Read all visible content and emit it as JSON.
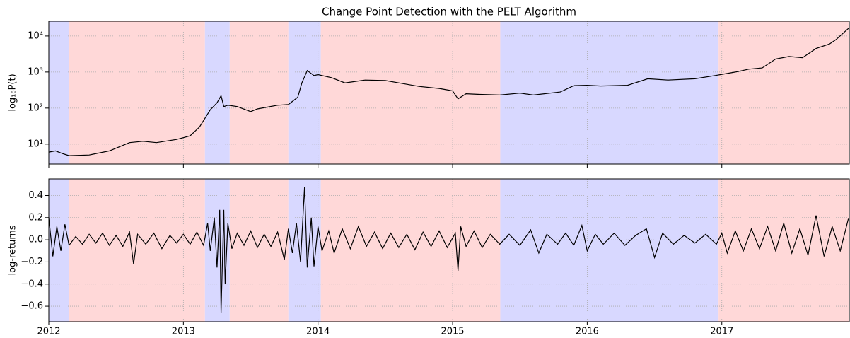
{
  "chart_data": [
    {
      "type": "line",
      "title": "Change Point Detection with the PELT Algorithm",
      "ylabel": "log₁₀P(t)",
      "log_y": true,
      "grid": true,
      "color": "#000000",
      "xlim": [
        2012.0,
        2017.947
      ],
      "xticks": [
        2012,
        2013,
        2014,
        2015,
        2016,
        2017
      ],
      "ylim": [
        2.8,
        25700
      ],
      "yticks": [
        {
          "value": 10,
          "label": "10¹"
        },
        {
          "value": 100,
          "label": "10²"
        },
        {
          "value": 1000,
          "label": "10³"
        },
        {
          "value": 10000,
          "label": "10⁴"
        }
      ],
      "spans": [
        {
          "start": 2012.0,
          "end": 2012.152,
          "color": "#d8d8ff"
        },
        {
          "start": 2012.152,
          "end": 2013.16,
          "color": "#ffd8d8"
        },
        {
          "start": 2013.16,
          "end": 2013.344,
          "color": "#d8d8ff"
        },
        {
          "start": 2013.344,
          "end": 2013.78,
          "color": "#ffd8d8"
        },
        {
          "start": 2013.78,
          "end": 2014.021,
          "color": "#d8d8ff"
        },
        {
          "start": 2014.021,
          "end": 2015.354,
          "color": "#ffd8d8"
        },
        {
          "start": 2015.354,
          "end": 2016.976,
          "color": "#d8d8ff"
        },
        {
          "start": 2016.976,
          "end": 2017.947,
          "color": "#ffd8d8"
        }
      ],
      "x": [
        2012.0,
        2012.05,
        2012.1,
        2012.15,
        2012.3,
        2012.45,
        2012.6,
        2012.7,
        2012.8,
        2012.95,
        2013.05,
        2013.12,
        2013.2,
        2013.25,
        2013.28,
        2013.3,
        2013.33,
        2013.4,
        2013.5,
        2013.55,
        2013.7,
        2013.78,
        2013.85,
        2013.88,
        2013.92,
        2013.97,
        2014.0,
        2014.1,
        2014.2,
        2014.35,
        2014.5,
        2014.6,
        2014.75,
        2014.9,
        2015.0,
        2015.04,
        2015.1,
        2015.2,
        2015.35,
        2015.5,
        2015.6,
        2015.8,
        2015.9,
        2016.0,
        2016.1,
        2016.3,
        2016.45,
        2016.6,
        2016.8,
        2016.95,
        2017.1,
        2017.2,
        2017.3,
        2017.4,
        2017.5,
        2017.6,
        2017.7,
        2017.8,
        2017.85,
        2017.947
      ],
      "values": [
        6,
        6.5,
        5.5,
        4.8,
        5,
        6.5,
        11,
        12,
        11,
        13.5,
        17,
        30,
        90,
        140,
        220,
        110,
        120,
        110,
        80,
        95,
        120,
        125,
        200,
        500,
        1100,
        800,
        850,
        700,
        500,
        600,
        580,
        500,
        400,
        350,
        300,
        180,
        250,
        240,
        230,
        260,
        230,
        280,
        420,
        430,
        410,
        430,
        650,
        600,
        650,
        800,
        1000,
        1200,
        1300,
        2300,
        2700,
        2500,
        4500,
        6000,
        8000,
        17000
      ]
    },
    {
      "type": "line",
      "ylabel": "log-returns",
      "log_y": false,
      "grid": true,
      "color": "#000000",
      "xlim": [
        2012.0,
        2017.947
      ],
      "xticks": [
        2012,
        2013,
        2014,
        2015,
        2016,
        2017
      ],
      "ylim": [
        -0.74,
        0.55
      ],
      "yticks": [
        {
          "value": -0.6,
          "label": "−0.6"
        },
        {
          "value": -0.4,
          "label": "−0.4"
        },
        {
          "value": -0.2,
          "label": "−0.2"
        },
        {
          "value": 0,
          "label": "0.0"
        },
        {
          "value": 0.2,
          "label": "0.2"
        },
        {
          "value": 0.4,
          "label": "0.4"
        }
      ],
      "spans": [
        {
          "start": 2012.0,
          "end": 2012.152,
          "color": "#d8d8ff"
        },
        {
          "start": 2012.152,
          "end": 2013.16,
          "color": "#ffd8d8"
        },
        {
          "start": 2013.16,
          "end": 2013.344,
          "color": "#d8d8ff"
        },
        {
          "start": 2013.344,
          "end": 2013.78,
          "color": "#ffd8d8"
        },
        {
          "start": 2013.78,
          "end": 2014.021,
          "color": "#d8d8ff"
        },
        {
          "start": 2014.021,
          "end": 2015.354,
          "color": "#ffd8d8"
        },
        {
          "start": 2015.354,
          "end": 2016.976,
          "color": "#d8d8ff"
        },
        {
          "start": 2016.976,
          "end": 2017.947,
          "color": "#ffd8d8"
        }
      ],
      "x": [
        2012.0,
        2012.03,
        2012.06,
        2012.09,
        2012.12,
        2012.15,
        2012.2,
        2012.25,
        2012.3,
        2012.35,
        2012.4,
        2012.45,
        2012.5,
        2012.55,
        2012.6,
        2012.63,
        2012.66,
        2012.72,
        2012.78,
        2012.84,
        2012.9,
        2012.95,
        2013.0,
        2013.05,
        2013.1,
        2013.15,
        2013.18,
        2013.2,
        2013.23,
        2013.25,
        2013.27,
        2013.28,
        2013.3,
        2013.31,
        2013.33,
        2013.36,
        2013.4,
        2013.45,
        2013.5,
        2013.55,
        2013.6,
        2013.65,
        2013.7,
        2013.75,
        2013.78,
        2013.81,
        2013.84,
        2013.87,
        2013.9,
        2013.92,
        2013.95,
        2013.97,
        2014.0,
        2014.03,
        2014.08,
        2014.12,
        2014.18,
        2014.24,
        2014.3,
        2014.36,
        2014.42,
        2014.48,
        2014.54,
        2014.6,
        2014.66,
        2014.72,
        2014.78,
        2014.84,
        2014.9,
        2014.96,
        2015.02,
        2015.04,
        2015.06,
        2015.1,
        2015.16,
        2015.22,
        2015.28,
        2015.35,
        2015.42,
        2015.5,
        2015.58,
        2015.64,
        2015.7,
        2015.78,
        2015.84,
        2015.9,
        2015.96,
        2016.0,
        2016.06,
        2016.12,
        2016.2,
        2016.28,
        2016.36,
        2016.44,
        2016.5,
        2016.56,
        2016.64,
        2016.72,
        2016.8,
        2016.88,
        2016.96,
        2017.0,
        2017.04,
        2017.1,
        2017.16,
        2017.22,
        2017.28,
        2017.34,
        2017.4,
        2017.46,
        2017.52,
        2017.58,
        2017.64,
        2017.7,
        2017.76,
        2017.82,
        2017.88,
        2017.94
      ],
      "values": [
        0.2,
        -0.15,
        0.12,
        -0.1,
        0.14,
        -0.05,
        0.03,
        -0.04,
        0.05,
        -0.03,
        0.06,
        -0.05,
        0.04,
        -0.06,
        0.07,
        -0.22,
        0.05,
        -0.04,
        0.06,
        -0.08,
        0.04,
        -0.03,
        0.05,
        -0.04,
        0.07,
        -0.05,
        0.15,
        -0.1,
        0.2,
        -0.25,
        0.27,
        -0.66,
        0.27,
        -0.4,
        0.15,
        -0.08,
        0.06,
        -0.05,
        0.08,
        -0.07,
        0.05,
        -0.06,
        0.07,
        -0.18,
        0.1,
        -0.12,
        0.15,
        -0.2,
        0.48,
        -0.25,
        0.2,
        -0.24,
        0.12,
        -0.1,
        0.08,
        -0.12,
        0.1,
        -0.08,
        0.12,
        -0.06,
        0.07,
        -0.08,
        0.06,
        -0.07,
        0.05,
        -0.09,
        0.07,
        -0.06,
        0.08,
        -0.07,
        0.06,
        -0.28,
        0.12,
        -0.06,
        0.08,
        -0.07,
        0.05,
        -0.04,
        0.05,
        -0.05,
        0.09,
        -0.12,
        0.05,
        -0.04,
        0.06,
        -0.05,
        0.13,
        -0.1,
        0.05,
        -0.04,
        0.06,
        -0.05,
        0.04,
        0.1,
        -0.16,
        0.06,
        -0.04,
        0.04,
        -0.03,
        0.05,
        -0.04,
        0.06,
        -0.12,
        0.08,
        -0.1,
        0.1,
        -0.08,
        0.12,
        -0.1,
        0.15,
        -0.12,
        0.1,
        -0.14,
        0.22,
        -0.15,
        0.12,
        -0.1,
        0.19
      ]
    }
  ]
}
